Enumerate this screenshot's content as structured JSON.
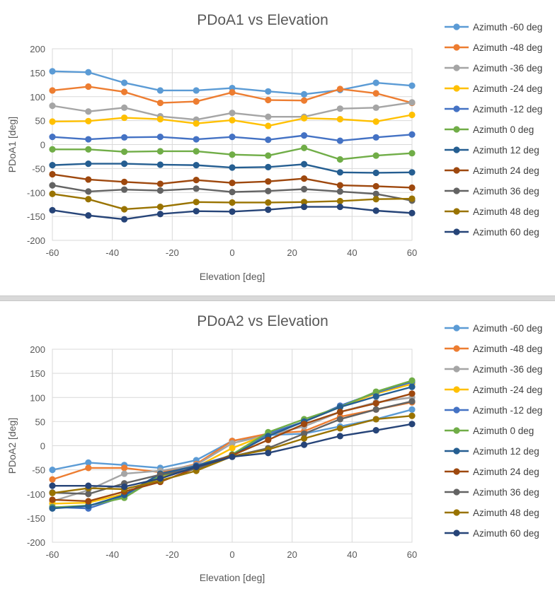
{
  "colors": {
    "Azimuth -60 deg": "#5b9bd5",
    "Azimuth -48 deg": "#ed7d31",
    "Azimuth -36 deg": "#a5a5a5",
    "Azimuth -24 deg": "#ffc000",
    "Azimuth -12 deg": "#4472c4",
    "Azimuth 0 deg": "#70ad47",
    "Azimuth 12 deg": "#255e91",
    "Azimuth 24 deg": "#9e480e",
    "Azimuth 36 deg": "#636363",
    "Azimuth 48 deg": "#997300",
    "Azimuth 60 deg": "#264478",
    "grid": "#d9d9d9",
    "text": "#595959"
  },
  "chart_data": [
    {
      "type": "line",
      "title": "PDoA1 vs Elevation",
      "xlabel": "Elevation [deg]",
      "ylabel": "PDoA1 [deg]",
      "xlim": [
        -60,
        60
      ],
      "ylim": [
        -200,
        200
      ],
      "x_ticks": [
        -60,
        -40,
        -20,
        0,
        20,
        40,
        60
      ],
      "y_ticks": [
        -200,
        -150,
        -100,
        -50,
        0,
        50,
        100,
        150,
        200
      ],
      "grid": true,
      "legend": "right",
      "x": [
        -60,
        -48,
        -36,
        -24,
        -12,
        0,
        12,
        24,
        36,
        48,
        60
      ],
      "series": [
        {
          "name": "Azimuth -60 deg",
          "values": [
            153,
            151,
            129,
            113,
            113,
            118,
            111,
            105,
            114,
            129,
            123
          ]
        },
        {
          "name": "Azimuth -48 deg",
          "values": [
            113,
            121,
            110,
            87,
            90,
            109,
            93,
            92,
            116,
            107,
            87
          ]
        },
        {
          "name": "Azimuth -36 deg",
          "values": [
            81,
            69,
            77,
            59,
            52,
            66,
            58,
            58,
            75,
            77,
            88
          ]
        },
        {
          "name": "Azimuth -24 deg",
          "values": [
            48,
            49,
            56,
            53,
            44,
            51,
            39,
            55,
            53,
            48,
            62
          ]
        },
        {
          "name": "Azimuth -12 deg",
          "values": [
            16,
            11,
            15,
            16,
            11,
            16,
            10,
            19,
            8,
            15,
            21
          ]
        },
        {
          "name": "Azimuth 0 deg",
          "values": [
            -10,
            -10,
            -15,
            -14,
            -14,
            -21,
            -23,
            -7,
            -31,
            -23,
            -18
          ]
        },
        {
          "name": "Azimuth 12 deg",
          "values": [
            -43,
            -40,
            -40,
            -42,
            -43,
            -48,
            -47,
            -41,
            -58,
            -59,
            -58
          ]
        },
        {
          "name": "Azimuth 24 deg",
          "values": [
            -62,
            -73,
            -78,
            -82,
            -74,
            -80,
            -77,
            -71,
            -85,
            -87,
            -90
          ]
        },
        {
          "name": "Azimuth 36 deg",
          "values": [
            -85,
            -98,
            -94,
            -96,
            -92,
            -99,
            -97,
            -93,
            -98,
            -103,
            -117
          ]
        },
        {
          "name": "Azimuth 48 deg",
          "values": [
            -103,
            -114,
            -135,
            -130,
            -120,
            -121,
            -121,
            -120,
            -118,
            -114,
            -113
          ]
        },
        {
          "name": "Azimuth 60 deg",
          "values": [
            -137,
            -148,
            -156,
            -145,
            -139,
            -140,
            -136,
            -130,
            -130,
            -138,
            -143
          ]
        }
      ]
    },
    {
      "type": "line",
      "title": "PDoA2 vs Elevation",
      "xlabel": "Elevation [deg]",
      "ylabel": "PDoA2 [deg]",
      "xlim": [
        -60,
        60
      ],
      "ylim": [
        -200,
        200
      ],
      "x_ticks": [
        -60,
        -40,
        -20,
        0,
        20,
        40,
        60
      ],
      "y_ticks": [
        -200,
        -150,
        -100,
        -50,
        0,
        50,
        100,
        150,
        200
      ],
      "grid": true,
      "legend": "right",
      "x": [
        -60,
        -48,
        -36,
        -24,
        -12,
        0,
        12,
        24,
        36,
        48,
        60
      ],
      "series": [
        {
          "name": "Azimuth -60 deg",
          "values": [
            -50,
            -35,
            -40,
            -46,
            -30,
            10,
            22,
            25,
            40,
            55,
            75
          ]
        },
        {
          "name": "Azimuth -48 deg",
          "values": [
            -70,
            -46,
            -46,
            -55,
            -38,
            10,
            25,
            30,
            60,
            75,
            90
          ]
        },
        {
          "name": "Azimuth -36 deg",
          "values": [
            -115,
            -92,
            -58,
            -52,
            -40,
            5,
            22,
            40,
            70,
            90,
            100
          ]
        },
        {
          "name": "Azimuth -24 deg",
          "values": [
            -120,
            -118,
            -100,
            -66,
            -44,
            -5,
            24,
            50,
            80,
            108,
            128
          ]
        },
        {
          "name": "Azimuth -12 deg",
          "values": [
            -127,
            -130,
            -105,
            -62,
            -41,
            -20,
            25,
            50,
            83,
            110,
            132
          ]
        },
        {
          "name": "Azimuth 0 deg",
          "values": [
            -128,
            -124,
            -108,
            -62,
            -48,
            -18,
            28,
            55,
            80,
            112,
            135
          ]
        },
        {
          "name": "Azimuth 12 deg",
          "values": [
            -130,
            -125,
            -102,
            -58,
            -42,
            -20,
            20,
            50,
            80,
            102,
            122
          ]
        },
        {
          "name": "Azimuth 24 deg",
          "values": [
            -112,
            -115,
            -95,
            -75,
            -46,
            -20,
            12,
            45,
            70,
            88,
            108
          ]
        },
        {
          "name": "Azimuth 36 deg",
          "values": [
            -97,
            -100,
            -78,
            -60,
            -48,
            -22,
            -5,
            25,
            55,
            75,
            92
          ]
        },
        {
          "name": "Azimuth 48 deg",
          "values": [
            -98,
            -88,
            -90,
            -72,
            -52,
            -22,
            -8,
            15,
            36,
            55,
            62
          ]
        },
        {
          "name": "Azimuth 60 deg",
          "values": [
            -83,
            -83,
            -85,
            -68,
            -44,
            -23,
            -15,
            2,
            20,
            32,
            45
          ]
        }
      ]
    }
  ]
}
